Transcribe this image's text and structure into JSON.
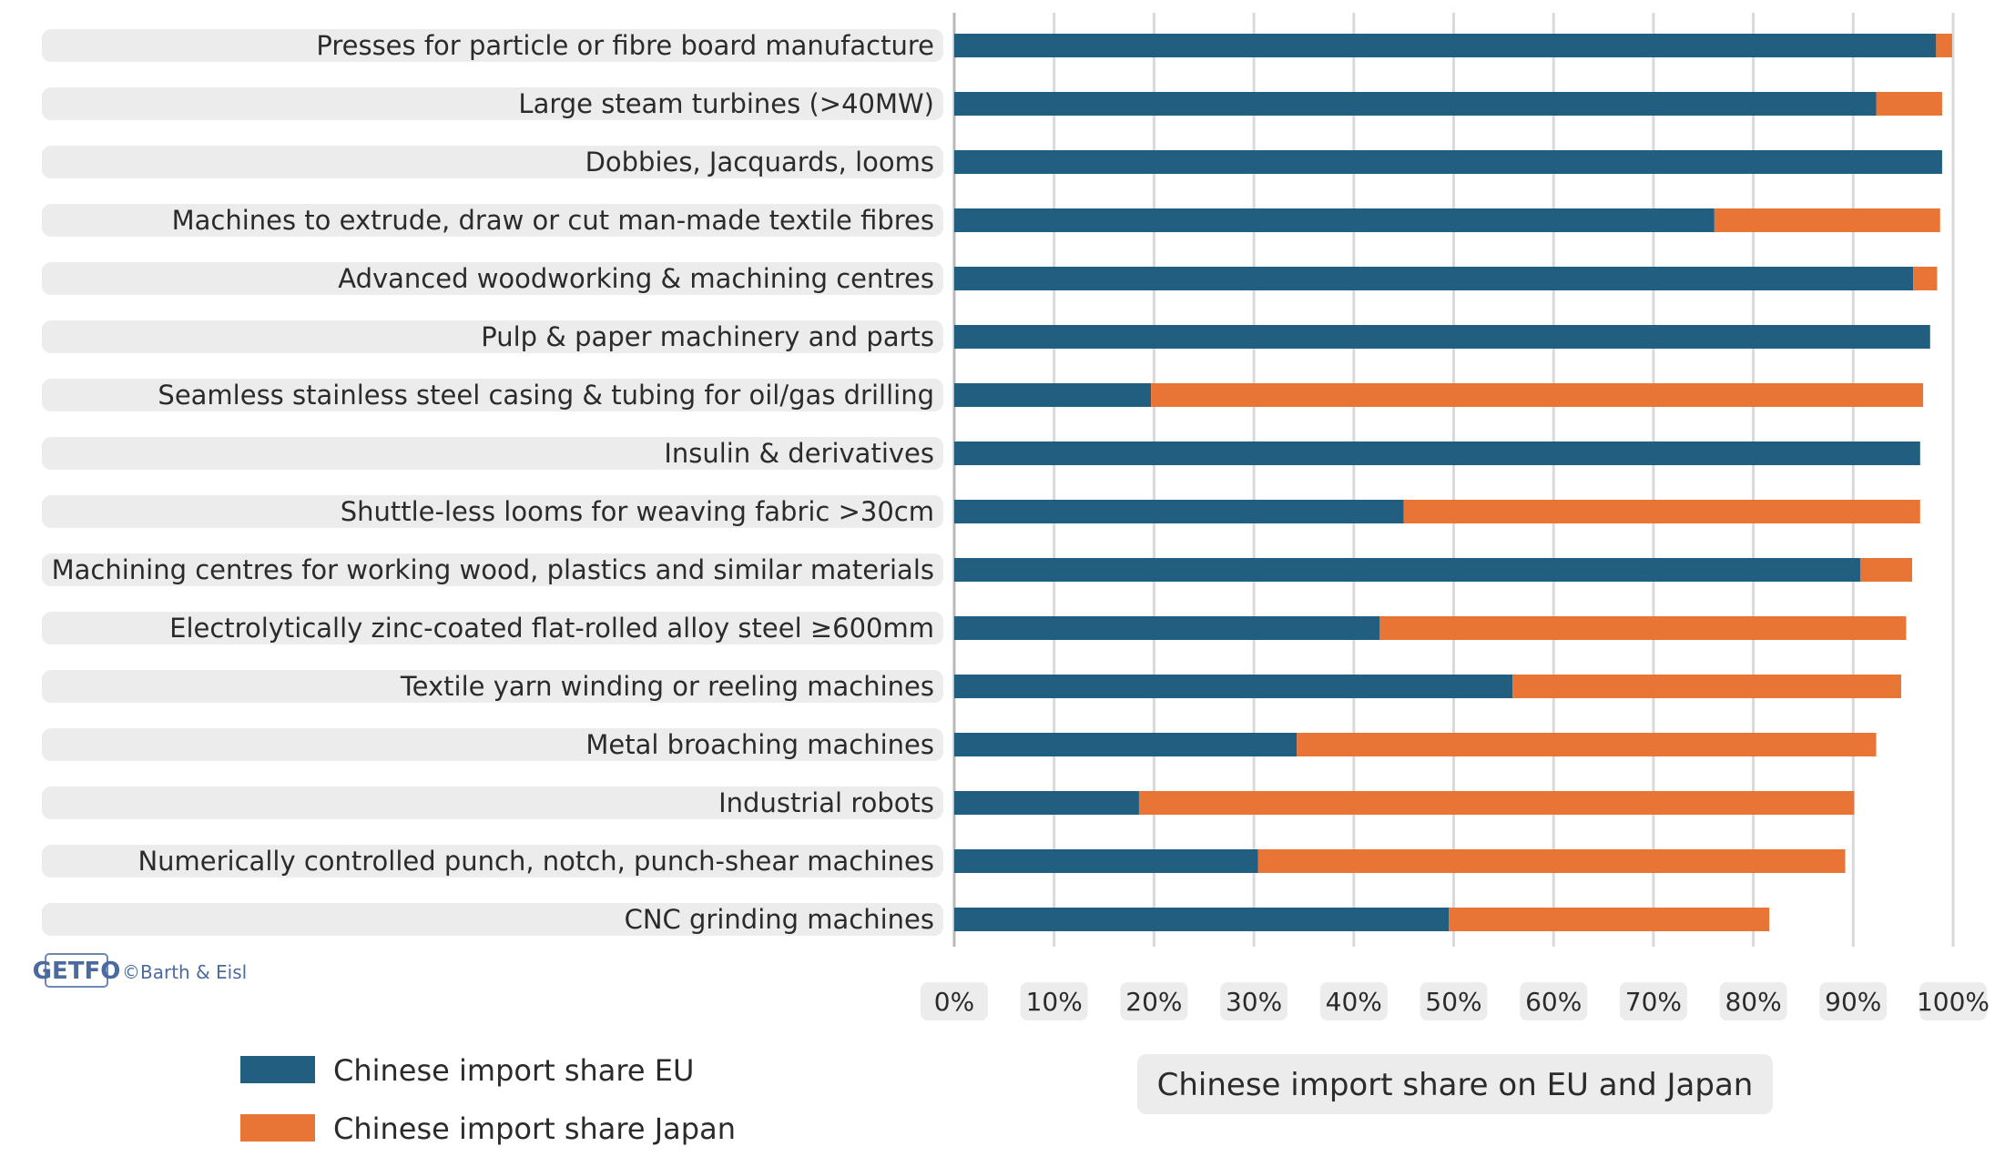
{
  "chart_data": {
    "type": "bar",
    "orientation": "horizontal",
    "stacked": true,
    "xlabel": "Chinese import share on EU and Japan",
    "xlim": [
      0,
      100
    ],
    "x_ticks": [
      "0%",
      "10%",
      "20%",
      "30%",
      "40%",
      "50%",
      "60%",
      "70%",
      "80%",
      "90%",
      "100%"
    ],
    "categories": [
      "Presses for particle or fibre board manufacture",
      "Large steam turbines (>40MW)",
      "Dobbies, Jacquards, looms",
      "Machines to extrude, draw or cut man-made textile fibres",
      "Advanced woodworking & machining centres",
      "Pulp & paper machinery and parts",
      "Seamless stainless steel casing & tubing for oil/gas drilling",
      "Insulin & derivatives",
      "Shuttle-less looms for weaving fabric >30cm",
      "Machining centres for working wood, plastics and similar materials",
      "Electrolytically zinc-coated flat-rolled alloy steel ≥600mm",
      "Textile yarn winding or reeling machines",
      "Metal broaching machines",
      "Industrial robots",
      "Numerically controlled punch, notch, punch-shear machines",
      "CNC grinding machines"
    ],
    "series": [
      {
        "name": "Chinese import share EU",
        "color": "#215e80",
        "values": [
          98.3,
          92.3,
          98.9,
          76.1,
          96.0,
          97.7,
          19.7,
          96.7,
          45.0,
          90.7,
          42.6,
          55.9,
          34.3,
          18.5,
          30.4,
          49.5
        ]
      },
      {
        "name": "Chinese import share Japan",
        "color": "#e87435",
        "values": [
          1.6,
          6.6,
          0,
          22.6,
          2.4,
          0,
          77.3,
          0,
          51.7,
          5.2,
          52.7,
          38.9,
          58.0,
          71.6,
          58.8,
          32.1
        ]
      }
    ],
    "gridlines": true,
    "legend_position": "bottom-left"
  },
  "legend": {
    "eu_label": "Chinese import share EU",
    "japan_label": "Chinese import share Japan"
  },
  "branding": {
    "logo": "GETFO",
    "credit": "©Barth & Eisl"
  }
}
